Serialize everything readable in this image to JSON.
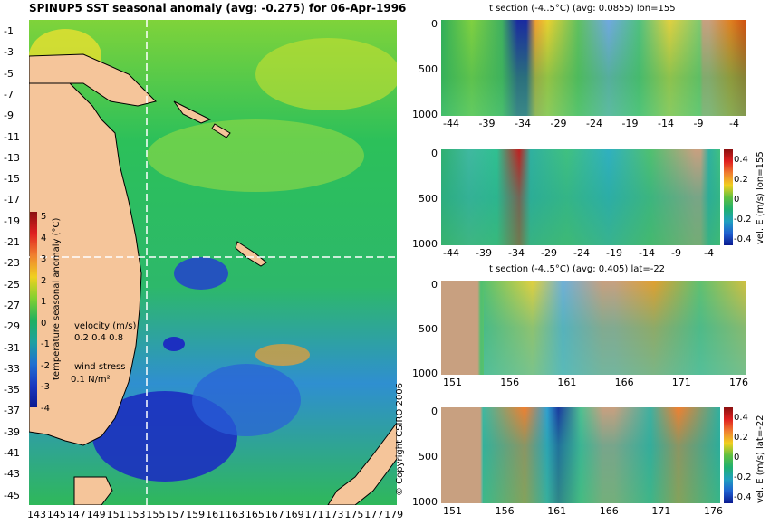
{
  "chart_data": [
    {
      "type": "heatmap",
      "title": "SPINUP5 SST seasonal anomaly  (avg: -0.275)  for 06-Apr-1996",
      "x_ticks": [
        "143",
        "145",
        "147",
        "149",
        "151",
        "153",
        "155",
        "157",
        "159",
        "161",
        "163",
        "165",
        "167",
        "169",
        "171",
        "173",
        "175",
        "177",
        "179"
      ],
      "y_ticks": [
        "-1",
        "-3",
        "-5",
        "-7",
        "-9",
        "-11",
        "-13",
        "-15",
        "-17",
        "-19",
        "-21",
        "-23",
        "-25",
        "-27",
        "-29",
        "-31",
        "-33",
        "-35",
        "-37",
        "-39",
        "-41",
        "-43",
        "-45"
      ],
      "xlim": [
        143,
        180
      ],
      "ylim": [
        -45,
        0
      ],
      "section_lines": {
        "lon": 155,
        "lat": -22
      },
      "colorbar": {
        "label": "temperature seasonal anomaly (°C)",
        "ticks": [
          "5",
          "4",
          "3",
          "2",
          "1",
          "0",
          "-1",
          "-2",
          "-3",
          "-4"
        ],
        "range": [
          -4,
          5
        ]
      },
      "legend": {
        "velocity_label": "velocity (m/s)",
        "velocity_scale": "0.2 0.4 0.8",
        "wind_label": "wind stress",
        "wind_scale": "0.1 N/m²"
      }
    },
    {
      "type": "heatmap",
      "title": "t section (-4..5°C) (avg: 0.0855) lon=155",
      "x_ticks": [
        "-44",
        "-39",
        "-34",
        "-29",
        "-24",
        "-19",
        "-14",
        "-9",
        "-4"
      ],
      "y_ticks": [
        "0",
        "500",
        "1000"
      ]
    },
    {
      "type": "heatmap",
      "title": "",
      "x_ticks": [
        "-44",
        "-39",
        "-34",
        "-29",
        "-24",
        "-19",
        "-14",
        "-9",
        "-4"
      ],
      "y_ticks": [
        "0",
        "500",
        "1000"
      ],
      "colorbar": {
        "label": "vel. E (m/s) lon=155",
        "ticks": [
          "0.4",
          "0.2",
          "0",
          "-0.2",
          "-0.4"
        ],
        "range": [
          -0.4,
          0.4
        ]
      }
    },
    {
      "type": "heatmap",
      "title": "t section (-4..5°C) (avg: 0.405) lat=-22",
      "x_ticks": [
        "151",
        "156",
        "161",
        "166",
        "171",
        "176"
      ],
      "y_ticks": [
        "0",
        "500",
        "1000"
      ]
    },
    {
      "type": "heatmap",
      "title": "",
      "x_ticks": [
        "151",
        "156",
        "161",
        "166",
        "171",
        "176"
      ],
      "y_ticks": [
        "0",
        "500",
        "1000"
      ],
      "colorbar": {
        "label": "vel. E (m/s) lat=-22",
        "ticks": [
          "0.4",
          "0.2",
          "0",
          "-0.2",
          "-0.4"
        ],
        "range": [
          -0.4,
          0.4
        ]
      }
    }
  ],
  "copyright": "© Copyright CSIRO 2006",
  "colors": {
    "land": "#d9a77c",
    "ocean_mid": "#22b44a",
    "bathy_land": "#c8ad8e"
  }
}
